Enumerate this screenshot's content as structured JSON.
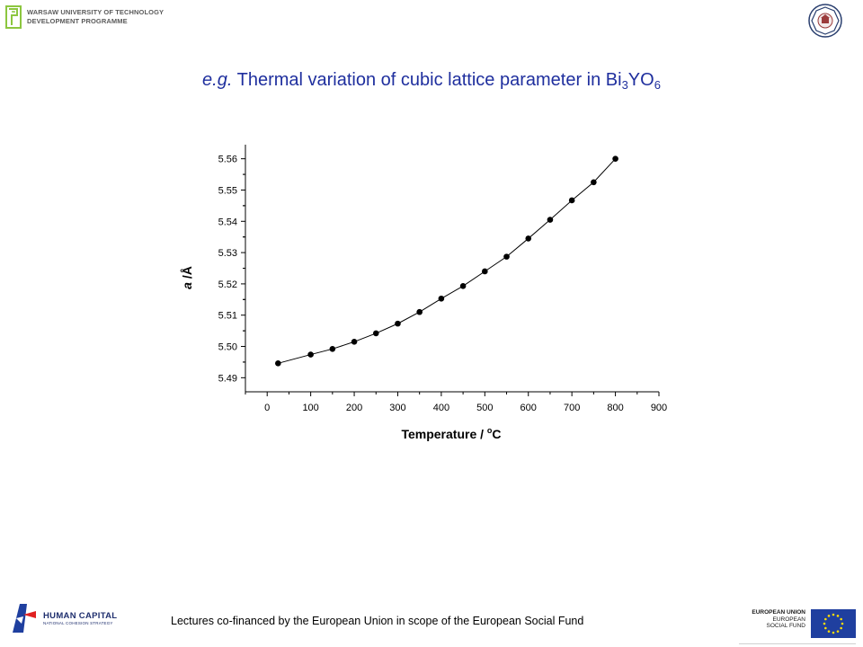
{
  "header": {
    "logo_line1": "WARSAW UNIVERSITY OF TECHNOLOGY",
    "logo_line2": "DEVELOPMENT PROGRAMME",
    "logo_icon": "wut-logo-icon",
    "crest_icon": "university-crest-icon"
  },
  "title": {
    "prefix": "e.g.",
    "main": " Thermal variation of cubic lattice parameter in Bi",
    "sub1": "3",
    "mid": "YO",
    "sub2": "6"
  },
  "chart_data": {
    "type": "line",
    "xlabel_main": "Temperature / ",
    "xlabel_sup": "o",
    "xlabel_end": "C",
    "ylabel_italic": "a",
    "ylabel_rest": " /Å",
    "xlim": [
      -50,
      900
    ],
    "ylim": [
      5.4855,
      5.5645
    ],
    "xticks": [
      "0",
      "100",
      "200",
      "300",
      "400",
      "500",
      "600",
      "700",
      "800",
      "900"
    ],
    "yticks": [
      "5.49",
      "5.50",
      "5.51",
      "5.52",
      "5.53",
      "5.54",
      "5.55",
      "5.56"
    ],
    "marker": "filled-circle",
    "series": [
      {
        "x": [
          25,
          100,
          150,
          200,
          250,
          300,
          350,
          400,
          450,
          500,
          550,
          600,
          650,
          700,
          750,
          800
        ],
        "y": [
          5.4946,
          5.4974,
          5.4992,
          5.5015,
          5.5042,
          5.5073,
          5.511,
          5.5153,
          5.5193,
          5.524,
          5.5287,
          5.5345,
          5.5405,
          5.5467,
          5.5525,
          5.56
        ]
      }
    ],
    "grid": false,
    "color": "#000000"
  },
  "footer": {
    "hc_title": "HUMAN CAPITAL",
    "hc_sub": "NATIONAL COHESION STRATEGY",
    "hc_icon": "human-capital-logo-icon",
    "text": "Lectures co-financed by the European Union in scope of the European Social Fund",
    "eu_line1": "EUROPEAN UNION",
    "eu_line2": "EUROPEAN",
    "eu_line3": "SOCIAL FUND",
    "eu_icon": "eu-flag-icon",
    "eu_flag_color": "#1f3f9f",
    "eu_star_color": "#ffdd00",
    "title_color": "#1f2f9e"
  }
}
